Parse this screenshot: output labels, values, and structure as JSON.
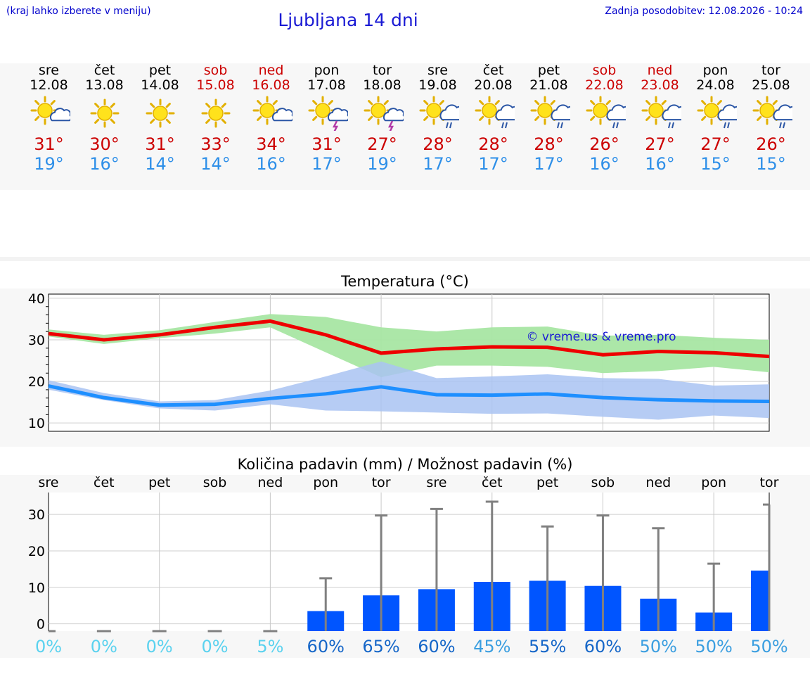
{
  "header": {
    "hint": "(kraj lahko izberete v meniju)",
    "title": "Ljubljana 14 dni",
    "updated": "Zadnja posodobitev: 12.08.2026 - 10:24"
  },
  "days": [
    {
      "name": "sre",
      "date": "12.08",
      "weekend": false,
      "icon": "sun-cloud-icon",
      "tmax": "31°",
      "tmin": "19°"
    },
    {
      "name": "čet",
      "date": "13.08",
      "weekend": false,
      "icon": "sun-icon",
      "tmax": "30°",
      "tmin": "16°"
    },
    {
      "name": "pet",
      "date": "14.08",
      "weekend": false,
      "icon": "sun-icon",
      "tmax": "31°",
      "tmin": "14°"
    },
    {
      "name": "sob",
      "date": "15.08",
      "weekend": true,
      "icon": "sun-icon",
      "tmax": "33°",
      "tmin": "14°"
    },
    {
      "name": "ned",
      "date": "16.08",
      "weekend": true,
      "icon": "sun-cloud-icon",
      "tmax": "34°",
      "tmin": "16°"
    },
    {
      "name": "pon",
      "date": "17.08",
      "weekend": false,
      "icon": "sun-thunderstorm-icon",
      "tmax": "31°",
      "tmin": "17°"
    },
    {
      "name": "tor",
      "date": "18.08",
      "weekend": false,
      "icon": "sun-thunderstorm-icon",
      "tmax": "27°",
      "tmin": "19°"
    },
    {
      "name": "sre",
      "date": "19.08",
      "weekend": false,
      "icon": "sun-rain-icon",
      "tmax": "28°",
      "tmin": "17°"
    },
    {
      "name": "čet",
      "date": "20.08",
      "weekend": false,
      "icon": "sun-rain-icon",
      "tmax": "28°",
      "tmin": "17°"
    },
    {
      "name": "pet",
      "date": "21.08",
      "weekend": false,
      "icon": "sun-rain-icon",
      "tmax": "28°",
      "tmin": "17°"
    },
    {
      "name": "sob",
      "date": "22.08",
      "weekend": true,
      "icon": "sun-rain-icon",
      "tmax": "26°",
      "tmin": "16°"
    },
    {
      "name": "ned",
      "date": "23.08",
      "weekend": true,
      "icon": "sun-rain-icon",
      "tmax": "27°",
      "tmin": "16°"
    },
    {
      "name": "pon",
      "date": "24.08",
      "weekend": false,
      "icon": "sun-rain-icon",
      "tmax": "27°",
      "tmin": "15°"
    },
    {
      "name": "tor",
      "date": "25.08",
      "weekend": false,
      "icon": "sun-rain-icon",
      "tmax": "26°",
      "tmin": "15°"
    }
  ],
  "colors": {
    "max_line": "#ee0000",
    "max_band": "#a8e6a3",
    "min_line": "#1e8fff",
    "min_band": "#a9c3f2",
    "bar": "#0055ff",
    "whisker": "#808080",
    "pct_low": "#5ad2ef",
    "pct_mid": "#3a9ee0",
    "pct_high": "#1566c8"
  },
  "chart_data": [
    {
      "type": "line",
      "title": "Temperatura (°C)",
      "watermark": "© vreme.us & vreme.pro",
      "ylim": [
        8,
        41
      ],
      "yticks": [
        10,
        20,
        30,
        40
      ],
      "x": [
        "sre",
        "čet",
        "pet",
        "sob",
        "ned",
        "pon",
        "tor",
        "sre",
        "čet",
        "pet",
        "sob",
        "ned",
        "pon",
        "tor"
      ],
      "series": [
        {
          "id": "max",
          "values": [
            31.5,
            30.0,
            31.2,
            33.0,
            34.5,
            31.2,
            26.8,
            27.8,
            28.3,
            28.2,
            26.4,
            27.2,
            26.9,
            26.0
          ],
          "band_low": [
            30.8,
            29.0,
            30.4,
            31.5,
            33.0,
            27.0,
            21.0,
            23.8,
            23.8,
            23.5,
            22.0,
            22.5,
            23.5,
            22.2
          ],
          "band_high": [
            32.5,
            31.2,
            32.3,
            34.3,
            36.2,
            35.5,
            33.0,
            32.0,
            33.0,
            33.2,
            31.0,
            31.2,
            30.5,
            30.0
          ]
        },
        {
          "id": "min",
          "values": [
            18.9,
            16.1,
            14.3,
            14.5,
            15.9,
            17.0,
            18.7,
            16.8,
            16.7,
            17.0,
            16.1,
            15.6,
            15.3,
            15.2
          ],
          "band_low": [
            18.0,
            15.5,
            13.5,
            13.0,
            14.5,
            13.0,
            12.8,
            12.5,
            12.2,
            12.3,
            11.5,
            10.8,
            11.8,
            11.2
          ],
          "band_high": [
            20.3,
            17.2,
            15.2,
            15.5,
            17.8,
            21.2,
            24.8,
            20.8,
            21.2,
            21.7,
            20.8,
            20.6,
            19.0,
            19.3
          ]
        }
      ]
    },
    {
      "type": "bar",
      "title": "Količina padavin (mm) / Možnost padavin (%)",
      "categories": [
        "sre",
        "čet",
        "pet",
        "sob",
        "ned",
        "pon",
        "tor",
        "sre",
        "čet",
        "pet",
        "sob",
        "ned",
        "pon",
        "tor"
      ],
      "ylim": [
        -2,
        36
      ],
      "yticks": [
        0,
        10,
        20,
        30
      ],
      "values": [
        0,
        0,
        0,
        0,
        0,
        3.5,
        7.8,
        9.5,
        11.5,
        11.8,
        10.4,
        6.9,
        3.1,
        14.6
      ],
      "whisker_high": [
        0,
        0,
        0,
        0,
        0,
        12.5,
        29.7,
        31.5,
        33.5,
        26.7,
        29.7,
        26.2,
        16.5,
        32.7
      ],
      "chance": [
        "0%",
        "0%",
        "0%",
        "0%",
        "5%",
        "60%",
        "65%",
        "60%",
        "45%",
        "55%",
        "60%",
        "50%",
        "50%",
        "50%"
      ]
    }
  ]
}
